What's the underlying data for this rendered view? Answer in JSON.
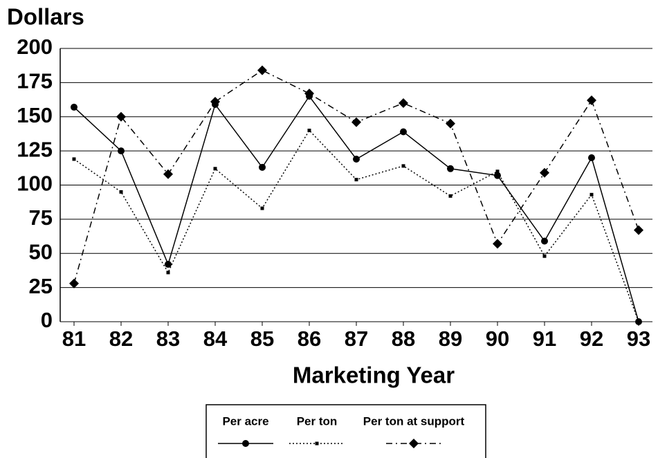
{
  "chart_data": {
    "type": "line",
    "y_axis_title": "Dollars",
    "x_axis_title": "Marketing Year",
    "categories": [
      "81",
      "82",
      "83",
      "84",
      "85",
      "86",
      "87",
      "88",
      "89",
      "90",
      "91",
      "92",
      "93"
    ],
    "series": [
      {
        "name": "Per acre",
        "color": "#000000",
        "marker": "circle",
        "dash": "solid",
        "values": [
          157,
          125,
          42,
          159,
          113,
          165,
          119,
          139,
          112,
          107,
          59,
          120,
          0
        ]
      },
      {
        "name": "Per ton",
        "color": "#000000",
        "marker": "square",
        "dash": "dotted",
        "values": [
          119,
          95,
          36,
          112,
          83,
          140,
          104,
          114,
          92,
          110,
          48,
          93,
          0
        ]
      },
      {
        "name": "Per ton at support",
        "color": "#000000",
        "marker": "diamond",
        "dash": "dashdot",
        "values": [
          28,
          150,
          108,
          161,
          184,
          167,
          146,
          160,
          145,
          57,
          109,
          162,
          67
        ]
      }
    ],
    "ylim": [
      0,
      200
    ],
    "yticks": [
      0,
      25,
      50,
      75,
      100,
      125,
      150,
      175,
      200
    ],
    "grid": true
  }
}
